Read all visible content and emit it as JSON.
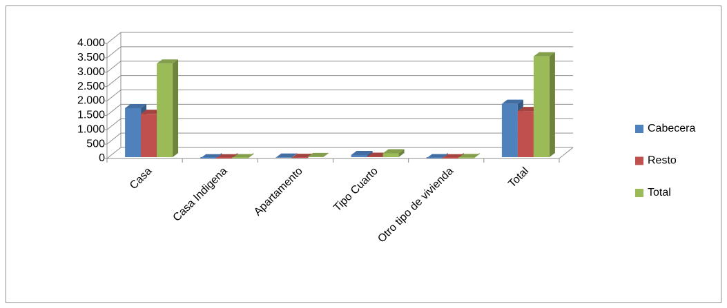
{
  "chart_data": {
    "type": "bar3d",
    "categories": [
      "Casa",
      "Casa Indigena",
      "Apartamento",
      "Tipo Cuarto",
      "Otro tipo de vivienda",
      "Total"
    ],
    "series": [
      {
        "name": "Cabecera",
        "color": "#4f81bd",
        "values": [
          1750,
          5,
          30,
          120,
          10,
          1900
        ]
      },
      {
        "name": "Resto",
        "color": "#c0504d",
        "values": [
          1550,
          5,
          20,
          60,
          5,
          1650
        ]
      },
      {
        "name": "Total",
        "color": "#9bbb59",
        "values": [
          3300,
          10,
          50,
          180,
          15,
          3550
        ]
      }
    ],
    "ylim": [
      0,
      4000
    ],
    "yticks": [
      0,
      500,
      {
        "value": 1000,
        "label": "1.000"
      },
      {
        "value": 1500,
        "label": "1.500"
      },
      {
        "value": 2000,
        "label": "2.000"
      },
      {
        "value": 2500,
        "label": "2.500"
      },
      {
        "value": 3000,
        "label": "3.000"
      },
      {
        "value": 3500,
        "label": "3.500"
      },
      {
        "value": 4000,
        "label": "4.000"
      }
    ],
    "grid": true,
    "legend": "right"
  }
}
